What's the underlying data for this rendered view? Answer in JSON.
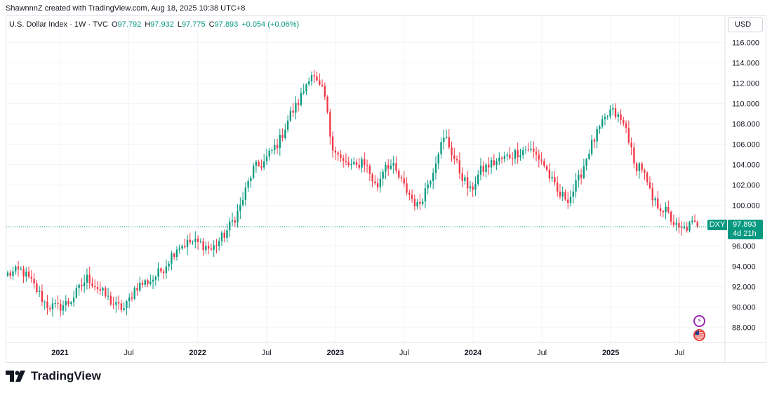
{
  "header": {
    "credit": "ShawnnnZ created with TradingView.com, Aug 18, 2025 10:38 UTC+8"
  },
  "legend": {
    "symbol_line": "U.S. Dollar Index · 1W · TVC",
    "open_label": "O",
    "open": "97.792",
    "high_label": "H",
    "high": "97.932",
    "low_label": "L",
    "low": "97.775",
    "close_label": "C",
    "close": "97.893",
    "change": "+0.054 (+0.06%)"
  },
  "currency_button": "USD",
  "last_price": {
    "symbol": "DXY",
    "value": "97.893",
    "countdown": "4d 21h",
    "price": 97.893
  },
  "brand": {
    "name": "TradingView"
  },
  "colors": {
    "up": "#089981",
    "down": "#f23645",
    "grid": "#f0f3fa",
    "text": "#131722",
    "last_price_line": "#089981"
  },
  "icons": [
    "lightning-event-icon",
    "us-flag-event-icon",
    "tradingview-logo-icon"
  ],
  "chart_data": {
    "type": "candlestick",
    "interval": "1W",
    "y_axis": {
      "position": "right",
      "ticks": [
        88,
        90,
        92,
        94,
        96,
        100,
        102,
        104,
        106,
        108,
        110,
        112,
        114,
        116
      ],
      "tick_labels": [
        "88.000",
        "90.000",
        "92.000",
        "94.000",
        "96.000",
        "100.000",
        "102.000",
        "104.000",
        "106.000",
        "108.000",
        "110.000",
        "112.000",
        "114.000",
        "116.000"
      ],
      "range": [
        86.5,
        118.6
      ]
    },
    "x_axis": {
      "labels": [
        {
          "label": "2021",
          "t": 2021.0,
          "bold": true
        },
        {
          "label": "Jul",
          "t": 2021.5,
          "bold": false
        },
        {
          "label": "2022",
          "t": 2022.0,
          "bold": true
        },
        {
          "label": "Jul",
          "t": 2022.5,
          "bold": false
        },
        {
          "label": "2023",
          "t": 2023.0,
          "bold": true
        },
        {
          "label": "Jul",
          "t": 2023.5,
          "bold": false
        },
        {
          "label": "2024",
          "t": 2024.0,
          "bold": true
        },
        {
          "label": "Jul",
          "t": 2024.5,
          "bold": false
        },
        {
          "label": "2025",
          "t": 2025.0,
          "bold": true
        },
        {
          "label": "Jul",
          "t": 2025.5,
          "bold": false
        }
      ],
      "range": [
        2020.61,
        2025.83
      ]
    },
    "grid": true,
    "price_path": {
      "t": [
        2020.62,
        2020.72,
        2020.8,
        2020.9,
        2020.98,
        2021.07,
        2021.2,
        2021.3,
        2021.4,
        2021.47,
        2021.55,
        2021.67,
        2021.75,
        2021.85,
        2021.95,
        2022.03,
        2022.1,
        2022.2,
        2022.3,
        2022.4,
        2022.48,
        2022.6,
        2022.67,
        2022.72,
        2022.78,
        2022.82,
        2022.87,
        2022.92,
        2022.97,
        2023.05,
        2023.15,
        2023.2,
        2023.3,
        2023.36,
        2023.42,
        2023.5,
        2023.6,
        2023.7,
        2023.75,
        2023.8,
        2023.9,
        2023.98,
        2024.05,
        2024.12,
        2024.22,
        2024.32,
        2024.4,
        2024.5,
        2024.62,
        2024.7,
        2024.77,
        2024.85,
        2024.92,
        2025.0,
        2025.05,
        2025.12,
        2025.17,
        2025.22,
        2025.3,
        2025.4,
        2025.5,
        2025.55,
        2025.6,
        2025.63
      ],
      "close": [
        93.2,
        93.6,
        92.3,
        90.2,
        89.9,
        90.5,
        92.9,
        91.5,
        90.1,
        89.8,
        92.0,
        92.7,
        93.8,
        95.9,
        96.4,
        96.2,
        95.6,
        97.2,
        99.5,
        103.5,
        104.2,
        106.5,
        108.9,
        109.8,
        111.6,
        113.2,
        111.8,
        110.9,
        106.2,
        104.2,
        103.7,
        104.6,
        101.6,
        104.2,
        103.7,
        101.8,
        99.8,
        103.1,
        105.5,
        106.7,
        103.4,
        101.3,
        103.3,
        104.0,
        104.6,
        105.2,
        105.6,
        104.4,
        101.0,
        100.7,
        102.6,
        105.7,
        107.5,
        109.3,
        108.7,
        107.4,
        103.8,
        104.0,
        100.5,
        99.4,
        97.4,
        97.8,
        98.2,
        97.9
      ]
    }
  }
}
